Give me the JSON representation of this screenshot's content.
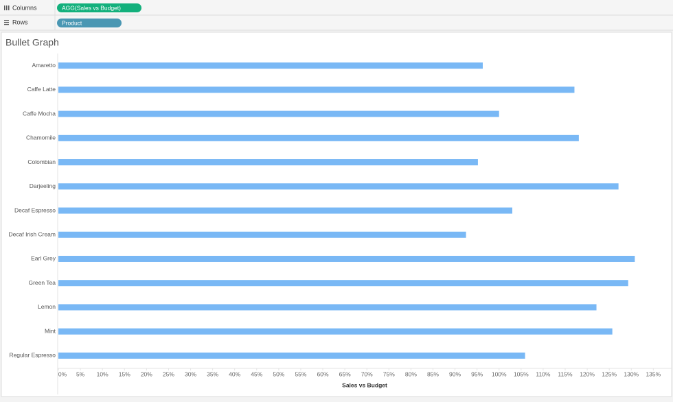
{
  "shelves": {
    "columns": {
      "label": "Columns",
      "pill": "AGG(Sales vs Budget)"
    },
    "rows": {
      "label": "Rows",
      "pill": "Product"
    }
  },
  "chart_data": {
    "type": "bar",
    "orientation": "horizontal",
    "title": "Bullet Graph",
    "categories": [
      "Amaretto",
      "Caffe Latte",
      "Caffe Mocha",
      "Chamomile",
      "Colombian",
      "Darjeeling",
      "Decaf Espresso",
      "Decaf Irish Cream",
      "Earl Grey",
      "Green Tea",
      "Lemon",
      "Mint",
      "Regular Espresso"
    ],
    "values": [
      96.3,
      117.1,
      100.0,
      118.1,
      95.2,
      127.1,
      103.0,
      92.5,
      130.8,
      129.3,
      122.1,
      125.7,
      105.9
    ],
    "color": "#79b8f5",
    "x_label": "Sales vs Budget",
    "xlim": [
      0,
      139
    ],
    "xticks": [
      {
        "value": 0,
        "label": "0%"
      },
      {
        "value": 5,
        "label": "5%"
      },
      {
        "value": 10,
        "label": "10%"
      },
      {
        "value": 15,
        "label": "15%"
      },
      {
        "value": 20,
        "label": "20%"
      },
      {
        "value": 25,
        "label": "25%"
      },
      {
        "value": 30,
        "label": "30%"
      },
      {
        "value": 35,
        "label": "35%"
      },
      {
        "value": 40,
        "label": "40%"
      },
      {
        "value": 45,
        "label": "45%"
      },
      {
        "value": 50,
        "label": "50%"
      },
      {
        "value": 55,
        "label": "55%"
      },
      {
        "value": 60,
        "label": "60%"
      },
      {
        "value": 65,
        "label": "65%"
      },
      {
        "value": 70,
        "label": "70%"
      },
      {
        "value": 75,
        "label": "75%"
      },
      {
        "value": 80,
        "label": "80%"
      },
      {
        "value": 85,
        "label": "85%"
      },
      {
        "value": 90,
        "label": "90%"
      },
      {
        "value": 95,
        "label": "95%"
      },
      {
        "value": 100,
        "label": "100%"
      },
      {
        "value": 105,
        "label": "105%"
      },
      {
        "value": 110,
        "label": "110%"
      },
      {
        "value": 115,
        "label": "115%"
      },
      {
        "value": 120,
        "label": "120%"
      },
      {
        "value": 125,
        "label": "125%"
      },
      {
        "value": 130,
        "label": "130%"
      },
      {
        "value": 135,
        "label": "135%"
      }
    ],
    "grid": false
  }
}
